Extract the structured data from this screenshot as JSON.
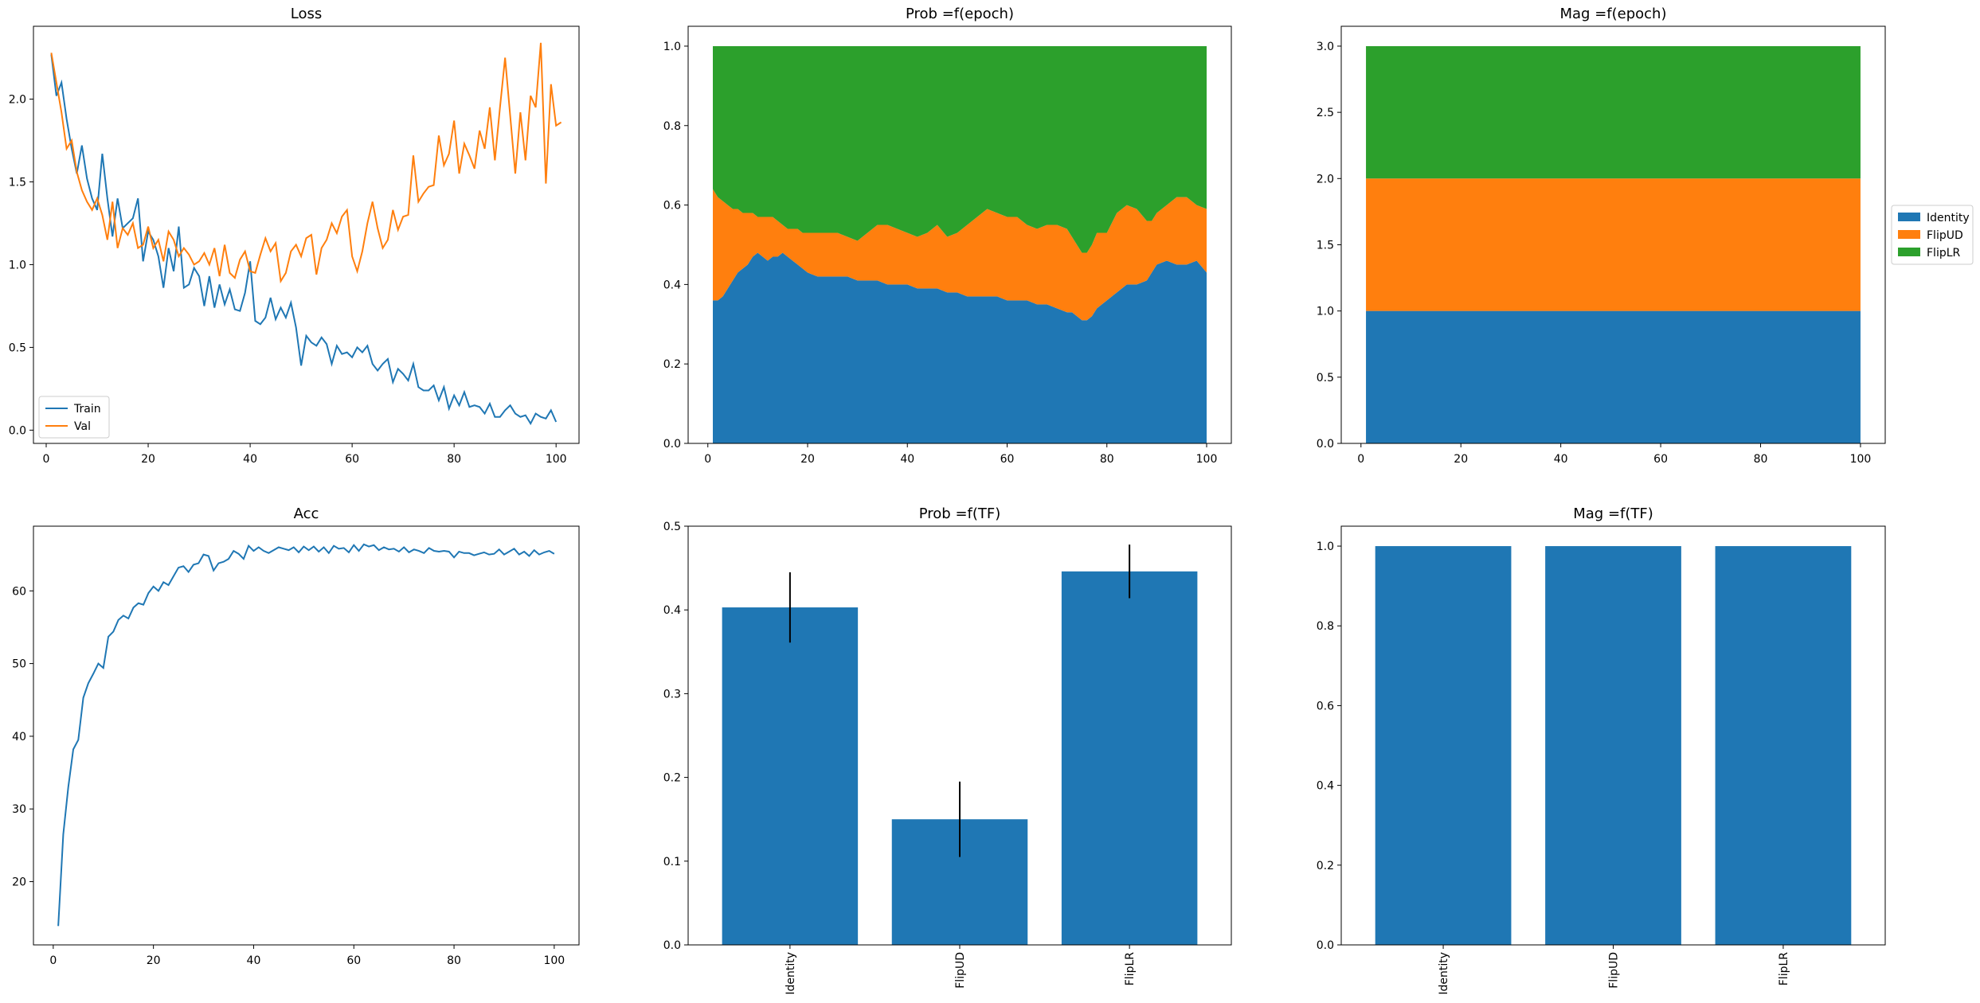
{
  "colors": {
    "blue": "#1f77b4",
    "orange": "#ff7f0e",
    "green": "#2ca02c",
    "black": "#000000"
  },
  "chart_data": [
    {
      "id": "loss",
      "type": "line",
      "title": "Loss",
      "xlabel": "",
      "ylabel": "",
      "xlim": [
        -2.5,
        104.5
      ],
      "ylim": [
        -0.08,
        2.44
      ],
      "xticks": [
        0,
        20,
        40,
        60,
        80,
        100
      ],
      "yticks": [
        0.0,
        0.5,
        1.0,
        1.5,
        2.0
      ],
      "ytick_labels": [
        "0.0",
        "0.5",
        "1.0",
        "1.5",
        "2.0"
      ],
      "legend": {
        "placement": "lower-left",
        "entries": [
          "Train",
          "Val"
        ]
      },
      "grid": false,
      "series": [
        {
          "name": "Train",
          "color": "#1f77b4",
          "y": [
            2.27,
            2.02,
            2.1,
            1.88,
            1.7,
            1.55,
            1.72,
            1.52,
            1.4,
            1.33,
            1.67,
            1.4,
            1.17,
            1.4,
            1.22,
            1.25,
            1.28,
            1.4,
            1.02,
            1.2,
            1.15,
            1.05,
            0.86,
            1.1,
            0.96,
            1.23,
            0.86,
            0.88,
            0.98,
            0.93,
            0.75,
            0.93,
            0.74,
            0.88,
            0.76,
            0.85,
            0.73,
            0.72,
            0.83,
            1.02,
            0.66,
            0.64,
            0.68,
            0.8,
            0.67,
            0.74,
            0.68,
            0.77,
            0.62,
            0.39,
            0.57,
            0.53,
            0.51,
            0.56,
            0.52,
            0.4,
            0.51,
            0.46,
            0.47,
            0.44,
            0.5,
            0.47,
            0.51,
            0.4,
            0.36,
            0.4,
            0.43,
            0.29,
            0.37,
            0.34,
            0.3,
            0.4,
            0.26,
            0.24,
            0.24,
            0.27,
            0.18,
            0.26,
            0.13,
            0.21,
            0.15,
            0.23,
            0.14,
            0.15,
            0.14,
            0.1,
            0.16,
            0.08,
            0.08,
            0.12,
            0.15,
            0.1,
            0.08,
            0.09,
            0.04,
            0.1,
            0.08,
            0.07,
            0.12,
            0.05
          ]
        },
        {
          "name": "Val",
          "color": "#ff7f0e",
          "y": [
            2.28,
            2.1,
            1.92,
            1.7,
            1.75,
            1.56,
            1.45,
            1.38,
            1.33,
            1.4,
            1.3,
            1.15,
            1.38,
            1.1,
            1.22,
            1.18,
            1.25,
            1.1,
            1.12,
            1.23,
            1.1,
            1.15,
            1.02,
            1.2,
            1.15,
            1.05,
            1.1,
            1.06,
            1.0,
            1.02,
            1.07,
            1.0,
            1.1,
            0.93,
            1.12,
            0.95,
            0.92,
            1.03,
            1.08,
            0.96,
            0.95,
            1.06,
            1.16,
            1.08,
            1.13,
            0.9,
            0.95,
            1.08,
            1.12,
            1.05,
            1.16,
            1.18,
            0.94,
            1.1,
            1.15,
            1.25,
            1.19,
            1.29,
            1.33,
            1.05,
            0.96,
            1.08,
            1.25,
            1.38,
            1.22,
            1.1,
            1.15,
            1.33,
            1.21,
            1.29,
            1.3,
            1.66,
            1.38,
            1.43,
            1.47,
            1.48,
            1.78,
            1.6,
            1.67,
            1.87,
            1.55,
            1.73,
            1.66,
            1.58,
            1.81,
            1.7,
            1.95,
            1.63,
            1.95,
            2.25,
            1.9,
            1.55,
            1.92,
            1.63,
            2.02,
            1.95,
            2.34,
            1.49,
            2.09,
            1.84,
            1.86
          ]
        }
      ]
    },
    {
      "id": "prob_epoch",
      "type": "area",
      "stacked": true,
      "title": "Prob =f(epoch)",
      "xlabel": "",
      "ylabel": "",
      "xlim": [
        -3.95,
        104.95
      ],
      "ylim": [
        0.0,
        1.05
      ],
      "xticks": [
        0,
        20,
        40,
        60,
        80,
        100
      ],
      "yticks": [
        0.0,
        0.2,
        0.4,
        0.6,
        0.8,
        1.0
      ],
      "ytick_labels": [
        "0.0",
        "0.2",
        "0.4",
        "0.6",
        "0.8",
        "1.0"
      ],
      "grid": false,
      "x": [
        1,
        2,
        3,
        4,
        5,
        6,
        7,
        8,
        9,
        10,
        11,
        12,
        13,
        14,
        15,
        16,
        17,
        18,
        19,
        20,
        22,
        24,
        26,
        28,
        30,
        32,
        34,
        36,
        38,
        40,
        42,
        44,
        46,
        48,
        50,
        52,
        54,
        56,
        58,
        60,
        62,
        64,
        66,
        68,
        70,
        72,
        73,
        74,
        75,
        76,
        77,
        78,
        80,
        82,
        84,
        86,
        88,
        89,
        90,
        92,
        94,
        96,
        98,
        100
      ],
      "series": [
        {
          "name": "Identity",
          "color": "#1f77b4",
          "values": [
            0.36,
            0.36,
            0.37,
            0.39,
            0.41,
            0.43,
            0.44,
            0.45,
            0.47,
            0.48,
            0.47,
            0.46,
            0.47,
            0.47,
            0.48,
            0.47,
            0.46,
            0.45,
            0.44,
            0.43,
            0.42,
            0.42,
            0.42,
            0.42,
            0.41,
            0.41,
            0.41,
            0.4,
            0.4,
            0.4,
            0.39,
            0.39,
            0.39,
            0.38,
            0.38,
            0.37,
            0.37,
            0.37,
            0.37,
            0.36,
            0.36,
            0.36,
            0.35,
            0.35,
            0.34,
            0.33,
            0.33,
            0.32,
            0.31,
            0.31,
            0.32,
            0.34,
            0.36,
            0.38,
            0.4,
            0.4,
            0.41,
            0.43,
            0.45,
            0.46,
            0.45,
            0.45,
            0.46,
            0.43
          ]
        },
        {
          "name": "FlipUD",
          "color": "#ff7f0e",
          "values": [
            0.28,
            0.26,
            0.24,
            0.21,
            0.18,
            0.16,
            0.14,
            0.13,
            0.11,
            0.09,
            0.1,
            0.11,
            0.1,
            0.09,
            0.07,
            0.07,
            0.08,
            0.09,
            0.09,
            0.1,
            0.11,
            0.11,
            0.11,
            0.1,
            0.1,
            0.12,
            0.14,
            0.15,
            0.14,
            0.13,
            0.13,
            0.14,
            0.16,
            0.14,
            0.15,
            0.18,
            0.2,
            0.22,
            0.21,
            0.21,
            0.21,
            0.19,
            0.19,
            0.2,
            0.21,
            0.21,
            0.19,
            0.18,
            0.17,
            0.17,
            0.18,
            0.19,
            0.17,
            0.2,
            0.2,
            0.19,
            0.15,
            0.13,
            0.13,
            0.14,
            0.17,
            0.17,
            0.14,
            0.16
          ]
        },
        {
          "name": "FlipLR",
          "color": "#2ca02c",
          "values": [
            0.36,
            0.38,
            0.39,
            0.4,
            0.41,
            0.41,
            0.42,
            0.42,
            0.42,
            0.43,
            0.43,
            0.43,
            0.43,
            0.44,
            0.45,
            0.46,
            0.46,
            0.46,
            0.47,
            0.47,
            0.47,
            0.47,
            0.47,
            0.48,
            0.49,
            0.47,
            0.45,
            0.45,
            0.46,
            0.47,
            0.48,
            0.47,
            0.45,
            0.48,
            0.47,
            0.45,
            0.43,
            0.41,
            0.42,
            0.43,
            0.43,
            0.45,
            0.46,
            0.45,
            0.45,
            0.46,
            0.48,
            0.5,
            0.52,
            0.52,
            0.5,
            0.47,
            0.47,
            0.42,
            0.4,
            0.41,
            0.44,
            0.44,
            0.42,
            0.4,
            0.38,
            0.38,
            0.4,
            0.41
          ]
        }
      ]
    },
    {
      "id": "mag_epoch",
      "type": "area",
      "stacked": true,
      "title": "Mag =f(epoch)",
      "xlabel": "",
      "ylabel": "",
      "xlim": [
        -3.95,
        104.95
      ],
      "ylim": [
        0.0,
        3.15
      ],
      "xticks": [
        0,
        20,
        40,
        60,
        80,
        100
      ],
      "yticks": [
        0.0,
        0.5,
        1.0,
        1.5,
        2.0,
        2.5,
        3.0
      ],
      "ytick_labels": [
        "0.0",
        "0.5",
        "1.0",
        "1.5",
        "2.0",
        "2.5",
        "3.0"
      ],
      "legend": {
        "placement": "outside-right",
        "entries": [
          "Identity",
          "FlipUD",
          "FlipLR"
        ]
      },
      "grid": false,
      "x": [
        1,
        100
      ],
      "series": [
        {
          "name": "Identity",
          "color": "#1f77b4",
          "values": [
            1.0,
            1.0
          ]
        },
        {
          "name": "FlipUD",
          "color": "#ff7f0e",
          "values": [
            1.0,
            1.0
          ]
        },
        {
          "name": "FlipLR",
          "color": "#2ca02c",
          "values": [
            1.0,
            1.0
          ]
        }
      ]
    },
    {
      "id": "acc",
      "type": "line",
      "title": "Acc",
      "xlabel": "",
      "ylabel": "",
      "xlim": [
        -3.95,
        104.95
      ],
      "ylim": [
        11.3,
        68.9
      ],
      "xticks": [
        0,
        20,
        40,
        60,
        80,
        100
      ],
      "yticks": [
        20,
        30,
        40,
        50,
        60
      ],
      "ytick_labels": [
        "20",
        "30",
        "40",
        "50",
        "60"
      ],
      "grid": false,
      "series": [
        {
          "name": "",
          "color": "#1f77b4",
          "y": [
            13.9,
            26.5,
            33.0,
            38.2,
            39.5,
            45.3,
            47.3,
            48.6,
            50.0,
            49.4,
            53.7,
            54.4,
            56.0,
            56.6,
            56.2,
            57.7,
            58.3,
            58.1,
            59.7,
            60.6,
            60.0,
            61.2,
            60.8,
            62.0,
            63.2,
            63.4,
            62.6,
            63.6,
            63.8,
            65.0,
            64.8,
            62.8,
            63.8,
            64.0,
            64.4,
            65.5,
            65.1,
            64.4,
            66.2,
            65.5,
            66.0,
            65.5,
            65.2,
            65.6,
            66.0,
            65.8,
            65.6,
            66.0,
            65.3,
            66.1,
            65.6,
            66.1,
            65.4,
            66.0,
            65.2,
            66.2,
            65.8,
            65.9,
            65.3,
            66.3,
            65.5,
            66.4,
            66.1,
            66.3,
            65.6,
            66.0,
            65.7,
            65.8,
            65.4,
            66.0,
            65.3,
            65.7,
            65.5,
            65.2,
            65.9,
            65.5,
            65.4,
            65.5,
            65.4,
            64.6,
            65.4,
            65.2,
            65.2,
            64.9,
            65.1,
            65.3,
            65.0,
            65.1,
            65.7,
            65.0,
            65.4,
            65.8,
            65.0,
            65.4,
            64.8,
            65.6,
            65.0,
            65.3,
            65.5,
            65.1
          ]
        }
      ]
    },
    {
      "id": "prob_tf",
      "type": "bar",
      "title": "Prob =f(TF)",
      "xlabel": "",
      "ylabel": "",
      "ylim": [
        0.0,
        0.5
      ],
      "yticks": [
        0.0,
        0.1,
        0.2,
        0.3,
        0.4,
        0.5
      ],
      "ytick_labels": [
        "0.0",
        "0.1",
        "0.2",
        "0.3",
        "0.4",
        "0.5"
      ],
      "categories": [
        "Identity",
        "FlipUD",
        "FlipLR"
      ],
      "values": [
        0.403,
        0.15,
        0.446
      ],
      "errors": [
        0.042,
        0.045,
        0.032
      ],
      "grid": false
    },
    {
      "id": "mag_tf",
      "type": "bar",
      "title": "Mag =f(TF)",
      "xlabel": "",
      "ylabel": "",
      "ylim": [
        0.0,
        1.05
      ],
      "yticks": [
        0.0,
        0.2,
        0.4,
        0.6,
        0.8,
        1.0
      ],
      "ytick_labels": [
        "0.0",
        "0.2",
        "0.4",
        "0.6",
        "0.8",
        "1.0"
      ],
      "categories": [
        "Identity",
        "FlipUD",
        "FlipLR"
      ],
      "values": [
        1.0,
        1.0,
        1.0
      ],
      "grid": false
    }
  ]
}
